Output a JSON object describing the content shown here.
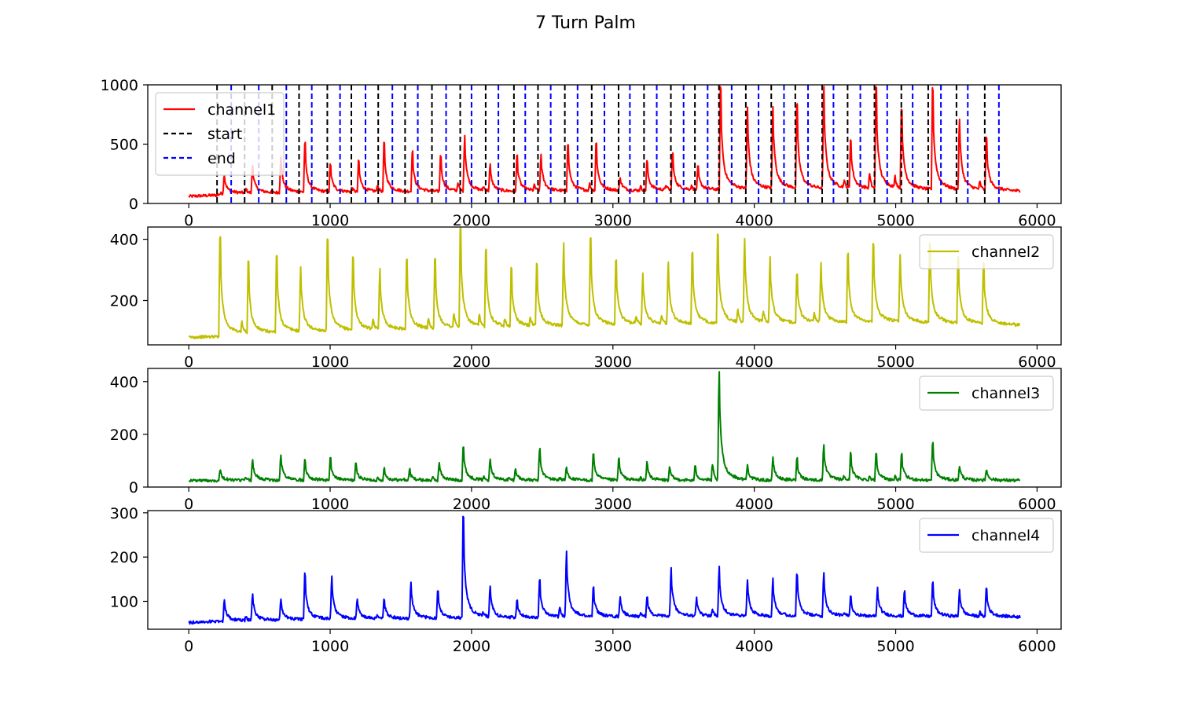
{
  "figure": {
    "title": "7 Turn Palm"
  },
  "colors": {
    "channel1": "#ff0000",
    "channel2": "#bfbf00",
    "channel3": "#008000",
    "channel4": "#0000ff",
    "start": "#000000",
    "end": "#0000ff"
  },
  "chart_data": [
    {
      "type": "line",
      "id": "channel1",
      "xlim": [
        -290,
        6170
      ],
      "ylim": [
        0,
        1000
      ],
      "x_ticks": [
        0,
        1000,
        2000,
        3000,
        4000,
        5000,
        6000
      ],
      "x_tick_labels": [
        "0",
        "1000",
        "2000",
        "3000",
        "4000",
        "5000",
        "6000"
      ],
      "y_ticks": [
        0,
        500,
        1000
      ],
      "y_tick_labels": [
        "0",
        "500",
        "1000"
      ],
      "legend": {
        "position": "upper-left",
        "entries": [
          "channel1",
          "start",
          "end"
        ]
      },
      "baseline": [
        [
          0,
          60
        ],
        [
          200,
          70
        ],
        [
          230,
          85
        ],
        [
          1000,
          95
        ],
        [
          2000,
          100
        ],
        [
          3000,
          105
        ],
        [
          3700,
          115
        ],
        [
          4200,
          125
        ],
        [
          5000,
          120
        ],
        [
          5880,
          105
        ]
      ],
      "series": [
        {
          "name": "channel1",
          "color": "#ff0000",
          "peaks": [
            [
              250,
              250
            ],
            [
              450,
              320
            ],
            [
              650,
              400
            ],
            [
              820,
              500
            ],
            [
              1000,
              320
            ],
            [
              1200,
              350
            ],
            [
              1380,
              500
            ],
            [
              1580,
              430
            ],
            [
              1780,
              400
            ],
            [
              1950,
              580
            ],
            [
              2130,
              320
            ],
            [
              2320,
              400
            ],
            [
              2490,
              410
            ],
            [
              2680,
              500
            ],
            [
              2880,
              500
            ],
            [
              3050,
              220
            ],
            [
              3240,
              350
            ],
            [
              3420,
              420
            ],
            [
              3600,
              300
            ],
            [
              3760,
              970
            ],
            [
              3950,
              800
            ],
            [
              4130,
              810
            ],
            [
              4300,
              820
            ],
            [
              4490,
              970
            ],
            [
              4680,
              530
            ],
            [
              4860,
              970
            ],
            [
              5040,
              790
            ],
            [
              5260,
              960
            ],
            [
              5450,
              710
            ],
            [
              5640,
              540
            ]
          ]
        }
      ],
      "markers": {
        "start": [
          200,
          395,
          590,
          780,
          980,
          1150,
          1340,
          1530,
          1720,
          1920,
          2100,
          2300,
          2470,
          2660,
          2850,
          3040,
          3220,
          3410,
          3580,
          3750,
          3940,
          4120,
          4290,
          4480,
          4660,
          4850,
          5040,
          5230,
          5430,
          5630
        ],
        "end": [
          300,
          495,
          690,
          870,
          1070,
          1250,
          1440,
          1620,
          1820,
          2000,
          2190,
          2380,
          2560,
          2750,
          2940,
          3120,
          3310,
          3500,
          3670,
          3840,
          4030,
          4210,
          4380,
          4560,
          4750,
          4940,
          5120,
          5320,
          5510,
          5730
        ]
      }
    },
    {
      "type": "line",
      "id": "channel2",
      "xlim": [
        -290,
        6170
      ],
      "ylim": [
        55,
        440
      ],
      "x_ticks": [
        0,
        1000,
        2000,
        3000,
        4000,
        5000,
        6000
      ],
      "x_tick_labels": [
        "0",
        "1000",
        "2000",
        "3000",
        "4000",
        "5000",
        "6000"
      ],
      "y_ticks": [
        200,
        400
      ],
      "y_tick_labels": [
        "200",
        "400"
      ],
      "legend": {
        "position": "upper-right",
        "entries": [
          "channel2"
        ]
      },
      "baseline": [
        [
          0,
          80
        ],
        [
          200,
          82
        ],
        [
          230,
          90
        ],
        [
          1000,
          100
        ],
        [
          2000,
          110
        ],
        [
          3000,
          120
        ],
        [
          4000,
          125
        ],
        [
          5000,
          130
        ],
        [
          5880,
          120
        ]
      ],
      "series": [
        {
          "name": "channel2",
          "color": "#bfbf00",
          "peaks": [
            [
              220,
              405
            ],
            [
              420,
              325
            ],
            [
              620,
              345
            ],
            [
              790,
              310
            ],
            [
              980,
              400
            ],
            [
              1160,
              335
            ],
            [
              1350,
              300
            ],
            [
              1540,
              335
            ],
            [
              1740,
              330
            ],
            [
              1920,
              430
            ],
            [
              2100,
              360
            ],
            [
              2280,
              300
            ],
            [
              2460,
              315
            ],
            [
              2650,
              385
            ],
            [
              2840,
              400
            ],
            [
              3020,
              330
            ],
            [
              3210,
              290
            ],
            [
              3390,
              320
            ],
            [
              3560,
              350
            ],
            [
              3740,
              410
            ],
            [
              3930,
              400
            ],
            [
              4110,
              340
            ],
            [
              4300,
              285
            ],
            [
              4470,
              320
            ],
            [
              4660,
              350
            ],
            [
              4840,
              380
            ],
            [
              5030,
              350
            ],
            [
              5240,
              385
            ],
            [
              5440,
              340
            ],
            [
              5620,
              320
            ]
          ]
        }
      ]
    },
    {
      "type": "line",
      "id": "channel3",
      "xlim": [
        -290,
        6170
      ],
      "ylim": [
        0,
        450
      ],
      "x_ticks": [
        0,
        1000,
        2000,
        3000,
        4000,
        5000,
        6000
      ],
      "x_tick_labels": [
        "0",
        "1000",
        "2000",
        "3000",
        "4000",
        "5000",
        "6000"
      ],
      "y_ticks": [
        0,
        200,
        400
      ],
      "y_tick_labels": [
        "0",
        "200",
        "400"
      ],
      "legend": {
        "position": "upper-right",
        "entries": [
          "channel3"
        ]
      },
      "baseline": [
        [
          0,
          25
        ],
        [
          5880,
          25
        ]
      ],
      "series": [
        {
          "name": "channel3",
          "color": "#008000",
          "peaks": [
            [
              220,
              65
            ],
            [
              450,
              105
            ],
            [
              650,
              120
            ],
            [
              820,
              100
            ],
            [
              1000,
              105
            ],
            [
              1180,
              85
            ],
            [
              1380,
              70
            ],
            [
              1560,
              65
            ],
            [
              1770,
              95
            ],
            [
              1940,
              150
            ],
            [
              2130,
              110
            ],
            [
              2310,
              70
            ],
            [
              2480,
              140
            ],
            [
              2670,
              75
            ],
            [
              2860,
              125
            ],
            [
              3040,
              105
            ],
            [
              3240,
              90
            ],
            [
              3400,
              70
            ],
            [
              3580,
              75
            ],
            [
              3750,
              435
            ],
            [
              3950,
              80
            ],
            [
              4130,
              110
            ],
            [
              4300,
              105
            ],
            [
              4490,
              160
            ],
            [
              4680,
              125
            ],
            [
              4860,
              125
            ],
            [
              5040,
              120
            ],
            [
              5260,
              165
            ],
            [
              5450,
              80
            ],
            [
              5640,
              65
            ]
          ]
        }
      ]
    },
    {
      "type": "line",
      "id": "channel4",
      "xlim": [
        -290,
        6170
      ],
      "ylim": [
        37,
        305
      ],
      "x_ticks": [
        0,
        1000,
        2000,
        3000,
        4000,
        5000,
        6000
      ],
      "x_tick_labels": [
        "0",
        "1000",
        "2000",
        "3000",
        "4000",
        "5000",
        "6000"
      ],
      "y_ticks": [
        100,
        200,
        300
      ],
      "y_tick_labels": [
        "100",
        "200",
        "300"
      ],
      "legend": {
        "position": "upper-right",
        "entries": [
          "channel4"
        ]
      },
      "baseline": [
        [
          0,
          52
        ],
        [
          200,
          55
        ],
        [
          1000,
          60
        ],
        [
          2000,
          62
        ],
        [
          3000,
          65
        ],
        [
          4000,
          66
        ],
        [
          5000,
          66
        ],
        [
          5880,
          65
        ]
      ],
      "series": [
        {
          "name": "channel4",
          "color": "#0000ff",
          "peaks": [
            [
              250,
              105
            ],
            [
              450,
              118
            ],
            [
              650,
              105
            ],
            [
              820,
              160
            ],
            [
              1010,
              155
            ],
            [
              1190,
              105
            ],
            [
              1380,
              105
            ],
            [
              1570,
              140
            ],
            [
              1760,
              125
            ],
            [
              1940,
              290
            ],
            [
              2130,
              130
            ],
            [
              2320,
              100
            ],
            [
              2480,
              145
            ],
            [
              2670,
              212
            ],
            [
              2860,
              130
            ],
            [
              3050,
              110
            ],
            [
              3240,
              110
            ],
            [
              3410,
              175
            ],
            [
              3590,
              105
            ],
            [
              3750,
              175
            ],
            [
              3950,
              148
            ],
            [
              4130,
              150
            ],
            [
              4300,
              160
            ],
            [
              4490,
              162
            ],
            [
              4680,
              110
            ],
            [
              4870,
              130
            ],
            [
              5060,
              120
            ],
            [
              5260,
              140
            ],
            [
              5450,
              125
            ],
            [
              5640,
              128
            ]
          ]
        }
      ]
    }
  ]
}
